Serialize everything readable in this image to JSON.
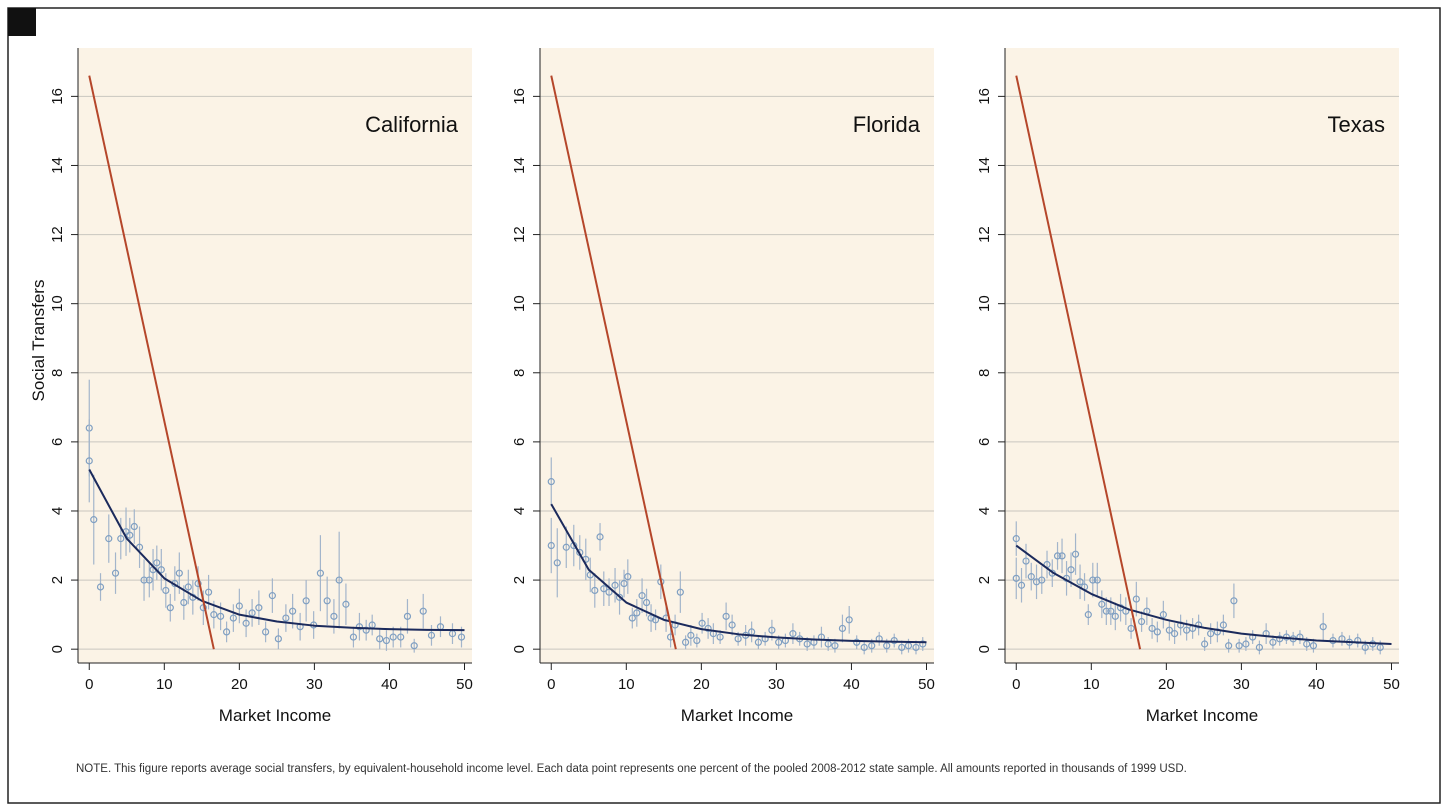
{
  "chart_data": [
    {
      "type": "scatter",
      "annotation": "California",
      "y_label": "Social Transfers",
      "x_label": "Market Income",
      "xlim": [
        -1.5,
        51
      ],
      "ylim": [
        -0.4,
        17.4
      ],
      "xticks": [
        0,
        10,
        20,
        30,
        40,
        50
      ],
      "yticks": [
        0,
        2,
        4,
        6,
        8,
        10,
        12,
        14,
        16
      ],
      "grid": true,
      "series": [
        {
          "type": "scatter",
          "color": "#7f9fc2",
          "x": [
            0,
            0,
            0.6,
            1.5,
            2.6,
            3.5,
            4.2,
            4.9,
            5.4,
            6,
            6.7,
            7.3,
            8,
            8.5,
            9,
            9.6,
            10.2,
            10.8,
            11.4,
            12,
            12.6,
            13.2,
            13.8,
            14.5,
            15.2,
            15.9,
            16.6,
            17.5,
            18.3,
            19.2,
            20,
            20.9,
            21.7,
            22.6,
            23.5,
            24.4,
            25.2,
            26.2,
            27.1,
            28.1,
            28.9,
            29.9,
            30.8,
            31.7,
            32.6,
            33.3,
            34.2,
            35.2,
            36,
            36.9,
            37.7,
            38.7,
            39.6,
            40.5,
            41.5,
            42.4,
            43.3,
            44.5,
            45.6,
            46.8,
            48.4,
            49.6
          ],
          "values": [
            6.4,
            5.45,
            3.75,
            1.8,
            3.2,
            2.2,
            3.2,
            3.4,
            3.3,
            3.55,
            2.95,
            2.0,
            2.0,
            2.3,
            2.5,
            2.3,
            1.7,
            1.2,
            1.9,
            2.2,
            1.35,
            1.8,
            1.5,
            1.9,
            1.2,
            1.65,
            1.0,
            0.95,
            0.5,
            0.9,
            1.25,
            0.75,
            1.05,
            1.2,
            0.5,
            1.55,
            0.3,
            0.9,
            1.1,
            0.65,
            1.4,
            0.7,
            2.2,
            1.4,
            0.95,
            2.0,
            1.3,
            0.35,
            0.65,
            0.55,
            0.7,
            0.3,
            0.25,
            0.35,
            0.35,
            0.95,
            0.1,
            1.1,
            0.4,
            0.65,
            0.45,
            0.35
          ],
          "errors": [
            1.4,
            1.2,
            1.3,
            0.4,
            0.7,
            0.6,
            0.6,
            0.7,
            0.5,
            0.5,
            0.6,
            0.6,
            0.5,
            0.6,
            0.5,
            0.6,
            0.5,
            0.4,
            0.5,
            0.6,
            0.5,
            0.5,
            0.5,
            0.5,
            0.5,
            0.5,
            0.4,
            0.4,
            0.3,
            0.4,
            0.5,
            0.4,
            0.4,
            0.5,
            0.3,
            0.5,
            0.3,
            0.4,
            0.5,
            0.4,
            0.6,
            0.4,
            1.1,
            0.7,
            0.5,
            1.4,
            0.6,
            0.3,
            0.4,
            0.3,
            0.3,
            0.3,
            0.3,
            0.3,
            0.3,
            0.5,
            0.2,
            0.5,
            0.3,
            0.3,
            0.3,
            0.3
          ]
        },
        {
          "type": "line",
          "color": "#1b2a5c",
          "x": [
            0,
            5,
            10,
            15,
            20,
            25,
            30,
            35,
            40,
            45,
            50
          ],
          "values": [
            5.2,
            3.2,
            2.05,
            1.4,
            1.0,
            0.8,
            0.68,
            0.62,
            0.58,
            0.56,
            0.55
          ]
        },
        {
          "type": "line",
          "color": "#b5462a",
          "x": [
            0,
            16.6
          ],
          "values": [
            16.6,
            0
          ]
        }
      ]
    },
    {
      "type": "scatter",
      "annotation": "Florida",
      "x_label": "Market Income",
      "xlim": [
        -1.5,
        51
      ],
      "ylim": [
        -0.4,
        17.4
      ],
      "xticks": [
        0,
        10,
        20,
        30,
        40,
        50
      ],
      "yticks": [
        0,
        2,
        4,
        6,
        8,
        10,
        12,
        14,
        16
      ],
      "grid": true,
      "series": [
        {
          "type": "scatter",
          "color": "#7f9fc2",
          "x": [
            0,
            0,
            0.8,
            2,
            3,
            3.8,
            4.6,
            5.2,
            5.8,
            6.5,
            7,
            7.7,
            8.5,
            9.1,
            9.7,
            10.2,
            10.8,
            11.4,
            12.1,
            12.7,
            13.3,
            13.9,
            14.6,
            15.3,
            15.9,
            16.5,
            17.2,
            17.9,
            18.6,
            19.4,
            20.1,
            20.9,
            21.6,
            22.5,
            23.3,
            24.1,
            24.9,
            25.9,
            26.7,
            27.6,
            28.5,
            29.4,
            30.3,
            31.2,
            32.2,
            33.1,
            34.1,
            35,
            36,
            36.9,
            37.8,
            38.8,
            39.7,
            40.7,
            41.7,
            42.7,
            43.7,
            44.7,
            45.7,
            46.7,
            47.6,
            48.6,
            49.5
          ],
          "values": [
            4.85,
            3.0,
            2.5,
            2.95,
            3.0,
            2.8,
            2.6,
            2.15,
            1.7,
            3.25,
            1.75,
            1.65,
            1.85,
            1.5,
            1.9,
            2.1,
            0.9,
            1.05,
            1.55,
            1.35,
            0.9,
            0.85,
            1.95,
            0.9,
            0.35,
            0.7,
            1.65,
            0.2,
            0.4,
            0.25,
            0.75,
            0.6,
            0.45,
            0.35,
            0.95,
            0.7,
            0.3,
            0.4,
            0.5,
            0.2,
            0.3,
            0.55,
            0.2,
            0.25,
            0.45,
            0.3,
            0.15,
            0.2,
            0.35,
            0.15,
            0.1,
            0.6,
            0.85,
            0.2,
            0.05,
            0.1,
            0.3,
            0.1,
            0.25,
            0.05,
            0.1,
            0.05,
            0.15
          ],
          "errors": [
            0.7,
            0.8,
            1.0,
            0.6,
            0.6,
            0.5,
            0.6,
            0.5,
            0.5,
            0.4,
            0.5,
            0.4,
            0.5,
            0.5,
            0.4,
            0.5,
            0.3,
            0.4,
            0.5,
            0.4,
            0.4,
            0.3,
            0.5,
            0.4,
            0.3,
            0.3,
            0.6,
            0.2,
            0.3,
            0.2,
            0.3,
            0.3,
            0.3,
            0.2,
            0.4,
            0.3,
            0.2,
            0.3,
            0.3,
            0.2,
            0.2,
            0.3,
            0.2,
            0.2,
            0.3,
            0.2,
            0.2,
            0.2,
            0.3,
            0.2,
            0.2,
            0.4,
            0.4,
            0.2,
            0.2,
            0.2,
            0.2,
            0.2,
            0.2,
            0.2,
            0.2,
            0.2,
            0.2
          ]
        },
        {
          "type": "line",
          "color": "#1b2a5c",
          "x": [
            0,
            5,
            10,
            15,
            20,
            25,
            30,
            35,
            40,
            45,
            50
          ],
          "values": [
            4.2,
            2.3,
            1.35,
            0.85,
            0.58,
            0.43,
            0.34,
            0.28,
            0.24,
            0.22,
            0.2
          ]
        },
        {
          "type": "line",
          "color": "#b5462a",
          "x": [
            0,
            16.6
          ],
          "values": [
            16.6,
            0
          ]
        }
      ]
    },
    {
      "type": "scatter",
      "annotation": "Texas",
      "x_label": "Market Income",
      "xlim": [
        -1.5,
        51
      ],
      "ylim": [
        -0.4,
        17.4
      ],
      "xticks": [
        0,
        10,
        20,
        30,
        40,
        50
      ],
      "yticks": [
        0,
        2,
        4,
        6,
        8,
        10,
        12,
        14,
        16
      ],
      "grid": true,
      "series": [
        {
          "type": "scatter",
          "color": "#7f9fc2",
          "x": [
            0,
            0,
            0.7,
            1.3,
            2,
            2.7,
            3.4,
            4.1,
            4.8,
            5.5,
            6.1,
            6.7,
            7.3,
            7.9,
            8.5,
            9.1,
            9.6,
            10.2,
            10.8,
            11.4,
            12,
            12.6,
            13.2,
            13.9,
            14.6,
            15.3,
            16,
            16.7,
            17.4,
            18.1,
            18.8,
            19.6,
            20.4,
            21.1,
            21.9,
            22.7,
            23.5,
            24.3,
            25.1,
            25.9,
            26.8,
            27.6,
            28.3,
            29,
            29.7,
            30.6,
            31.5,
            32.4,
            33.3,
            34.2,
            35.1,
            36,
            36.9,
            37.8,
            38.7,
            39.6,
            40.9,
            42.2,
            43.4,
            44.4,
            45.5,
            46.5,
            47.5,
            48.5
          ],
          "values": [
            3.2,
            2.05,
            1.85,
            2.55,
            2.1,
            1.95,
            2.0,
            2.45,
            2.2,
            2.7,
            2.7,
            2.05,
            2.3,
            2.75,
            1.95,
            1.8,
            1.0,
            2.0,
            2.0,
            1.3,
            1.1,
            1.1,
            0.95,
            1.2,
            1.1,
            0.6,
            1.45,
            0.8,
            1.1,
            0.6,
            0.5,
            1.0,
            0.55,
            0.45,
            0.7,
            0.55,
            0.6,
            0.7,
            0.15,
            0.45,
            0.5,
            0.7,
            0.1,
            1.4,
            0.1,
            0.15,
            0.35,
            0.05,
            0.45,
            0.2,
            0.3,
            0.35,
            0.3,
            0.35,
            0.15,
            0.1,
            0.65,
            0.25,
            0.3,
            0.2,
            0.25,
            0.05,
            0.15,
            0.05
          ],
          "errors": [
            0.5,
            0.6,
            0.5,
            0.5,
            0.4,
            0.5,
            0.4,
            0.4,
            0.4,
            0.4,
            0.5,
            0.5,
            0.5,
            0.6,
            0.5,
            0.4,
            0.3,
            0.5,
            0.5,
            0.4,
            0.4,
            0.4,
            0.4,
            0.4,
            0.4,
            0.3,
            0.5,
            0.3,
            0.4,
            0.3,
            0.3,
            0.4,
            0.3,
            0.3,
            0.3,
            0.3,
            0.3,
            0.3,
            0.2,
            0.3,
            0.3,
            0.3,
            0.2,
            0.5,
            0.2,
            0.2,
            0.2,
            0.2,
            0.3,
            0.2,
            0.2,
            0.2,
            0.2,
            0.2,
            0.2,
            0.2,
            0.4,
            0.2,
            0.2,
            0.2,
            0.2,
            0.2,
            0.2,
            0.2
          ]
        },
        {
          "type": "line",
          "color": "#1b2a5c",
          "x": [
            0,
            5,
            10,
            15,
            20,
            25,
            30,
            35,
            40,
            45,
            50
          ],
          "values": [
            3.0,
            2.2,
            1.6,
            1.15,
            0.85,
            0.62,
            0.45,
            0.34,
            0.25,
            0.2,
            0.15
          ]
        },
        {
          "type": "line",
          "color": "#b5462a",
          "x": [
            0,
            16.5
          ],
          "values": [
            16.6,
            0
          ]
        }
      ]
    }
  ],
  "note": "NOTE. This figure reports average social transfers, by equivalent-household income level. Each data point represents one percent of the pooled 2008-2012 state sample.   All amounts reported in thousands of 1999 USD."
}
